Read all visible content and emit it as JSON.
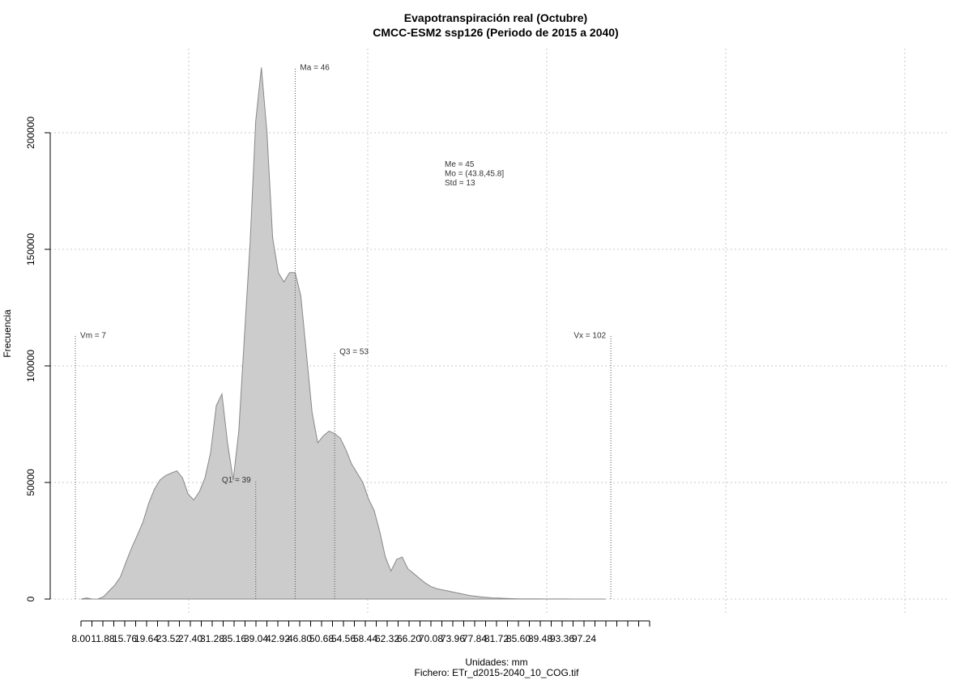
{
  "chart_data": {
    "type": "area",
    "title": "Evapotranspiración real (Octubre)",
    "subtitle": "CMCC-ESM2 ssp126 (Periodo de 2015 a 2040)",
    "xlabel": "Unidades: mm",
    "ylabel": "Frecuencia",
    "footer": "Fichero: ETr_d2015-2040_10_COG.tif",
    "xlim": [
      7,
      102
    ],
    "ylim": [
      0,
      225000
    ],
    "x_ticks": [
      "8.00",
      "11.88",
      "15.76",
      "19.64",
      "23.52",
      "27.40",
      "31.28",
      "35.16",
      "39.04",
      "42.92",
      "46.80",
      "50.68",
      "54.56",
      "58.44",
      "62.32",
      "66.20",
      "70.08",
      "73.96",
      "77.84",
      "81.72",
      "85.60",
      "89.48",
      "93.36",
      "97.24"
    ],
    "y_ticks": [
      0,
      50000,
      100000,
      150000,
      200000
    ],
    "y_tick_labels": [
      "0",
      "50000",
      "100000",
      "150000",
      "200000"
    ],
    "grid": true,
    "fill_color": "#cccccc",
    "line_color": "#888888",
    "series": [
      {
        "x": [
          8.0,
          9.0,
          10.0,
          11.0,
          12.0,
          13.0,
          14.0,
          15.0,
          16.0,
          17.0,
          18.0,
          19.0,
          20.0,
          21.0,
          22.0,
          23.0,
          24.0,
          25.0,
          26.0,
          27.0,
          28.0,
          29.0,
          30.0,
          31.0,
          32.0,
          33.0,
          34.0,
          35.0,
          36.0,
          37.0,
          38.0,
          39.0,
          40.0,
          41.0,
          42.0,
          43.0,
          44.0,
          45.0,
          46.0,
          47.0,
          48.0,
          49.0,
          50.0,
          51.0,
          52.0,
          53.0,
          54.0,
          55.0,
          56.0,
          57.0,
          58.0,
          59.0,
          60.0,
          61.0,
          62.0,
          63.0,
          64.0,
          65.0,
          66.0,
          67.0,
          68.0,
          69.0,
          70.0,
          71.0,
          72.0,
          73.0,
          74.0,
          75.0,
          76.0,
          77.0,
          78.0,
          79.0,
          80.0,
          81.0,
          82.0,
          83.0,
          84.0,
          85.0,
          86.0,
          87.0,
          88.0,
          89.0,
          90.0,
          91.0,
          92.0,
          93.0,
          94.0,
          95.0,
          96.0,
          97.0,
          98.0,
          99.0,
          100.0,
          101.0
        ],
        "y": [
          0,
          500,
          0,
          0,
          1000,
          3500,
          6000,
          9500,
          16000,
          22000,
          27500,
          33000,
          41000,
          47000,
          51000,
          53000,
          54000,
          55000,
          52000,
          45000,
          42500,
          46000,
          52000,
          63000,
          83000,
          88000,
          67000,
          51000,
          72000,
          113000,
          153000,
          205000,
          228000,
          200000,
          155000,
          140000,
          136000,
          140000,
          140000,
          130000,
          105000,
          80000,
          67000,
          70000,
          72000,
          71000,
          69000,
          64000,
          58000,
          54000,
          50000,
          43000,
          38000,
          29000,
          18000,
          12000,
          17000,
          18000,
          13000,
          11000,
          9000,
          7000,
          5500,
          4500,
          4000,
          3500,
          3000,
          2500,
          2000,
          1500,
          1200,
          900,
          700,
          500,
          400,
          300,
          200,
          150,
          120,
          100,
          80,
          60,
          50,
          40,
          30,
          25,
          20,
          15,
          10,
          5,
          5,
          0,
          0,
          0
        ]
      }
    ],
    "annotations": [
      {
        "label": "Vm = 7",
        "x": 7,
        "height": 113000,
        "text_pos": "right"
      },
      {
        "label": "Q1 = 39",
        "x": 39,
        "height": 51000,
        "text_pos": "left"
      },
      {
        "label": "Ma = 46",
        "x": 46,
        "height": 228000,
        "text_pos": "right"
      },
      {
        "label": "Q3 = 53",
        "x": 53,
        "height": 106000,
        "text_pos": "right"
      },
      {
        "label": "Vx = 102",
        "x": 102,
        "height": 113000,
        "text_pos": "left"
      }
    ],
    "stats": [
      "Me = 45",
      "Mo = (43.8,45.8]",
      "Std = 13"
    ]
  }
}
